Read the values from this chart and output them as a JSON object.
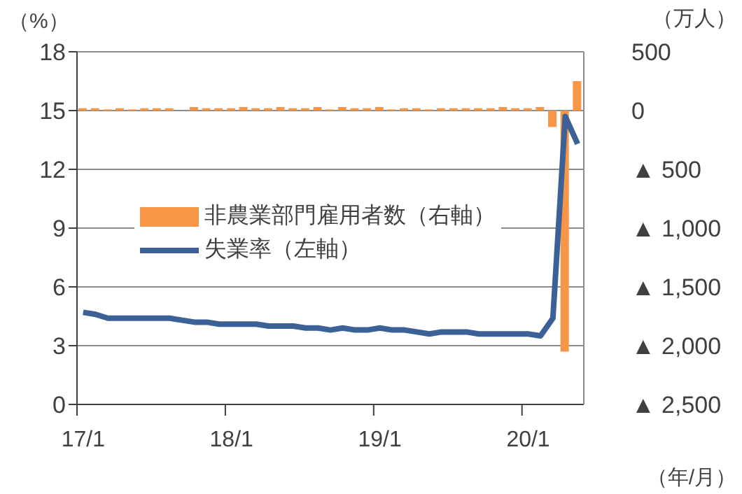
{
  "chart_data": {
    "type": "bar",
    "categories": [
      "17/1",
      null,
      null,
      null,
      null,
      null,
      null,
      null,
      null,
      null,
      null,
      null,
      "18/1",
      null,
      null,
      null,
      null,
      null,
      null,
      null,
      null,
      null,
      null,
      null,
      "19/1",
      null,
      null,
      null,
      null,
      null,
      null,
      null,
      null,
      null,
      null,
      null,
      "20/1",
      null,
      null,
      null,
      null
    ],
    "series": [
      {
        "name": "非農業部門雇用者数（右軸）",
        "axis": "y2",
        "color": "#f79646",
        "values": [
          20,
          20,
          10,
          20,
          10,
          20,
          20,
          20,
          0,
          30,
          20,
          20,
          20,
          30,
          20,
          20,
          30,
          20,
          20,
          30,
          10,
          30,
          20,
          20,
          30,
          10,
          20,
          20,
          10,
          20,
          20,
          20,
          20,
          20,
          30,
          20,
          20,
          30,
          -140,
          -2050,
          250
        ]
      },
      {
        "name": "失業率（左軸）",
        "type": "line",
        "color": "#3b6196",
        "values": [
          4.7,
          4.6,
          4.4,
          4.4,
          4.4,
          4.4,
          4.4,
          4.4,
          4.3,
          4.2,
          4.2,
          4.1,
          4.1,
          4.1,
          4.1,
          4.0,
          4.0,
          4.0,
          3.9,
          3.9,
          3.8,
          3.9,
          3.8,
          3.8,
          3.9,
          3.8,
          3.8,
          3.7,
          3.6,
          3.7,
          3.7,
          3.7,
          3.6,
          3.6,
          3.6,
          3.6,
          3.6,
          3.5,
          4.4,
          14.7,
          13.3
        ]
      }
    ],
    "ylabel": "（%）",
    "y2label": "（万人）",
    "xlabel": "（年/月）",
    "ylim": [
      0,
      18
    ],
    "yticks": [
      0,
      3,
      6,
      9,
      12,
      15,
      18
    ],
    "y2lim": [
      -2500,
      500
    ],
    "y2ticks": [
      500,
      0,
      {
        "value": -500,
        "label": "▲ 500"
      },
      {
        "value": -1000,
        "label": "▲ 1,000"
      },
      {
        "value": -1500,
        "label": "▲ 1,500"
      },
      {
        "value": -2000,
        "label": "▲ 2,000"
      },
      {
        "value": -2500,
        "label": "▲ 2,500"
      }
    ],
    "grid": "y",
    "legend": "left",
    "marker": "none",
    "line_style": "solid"
  }
}
